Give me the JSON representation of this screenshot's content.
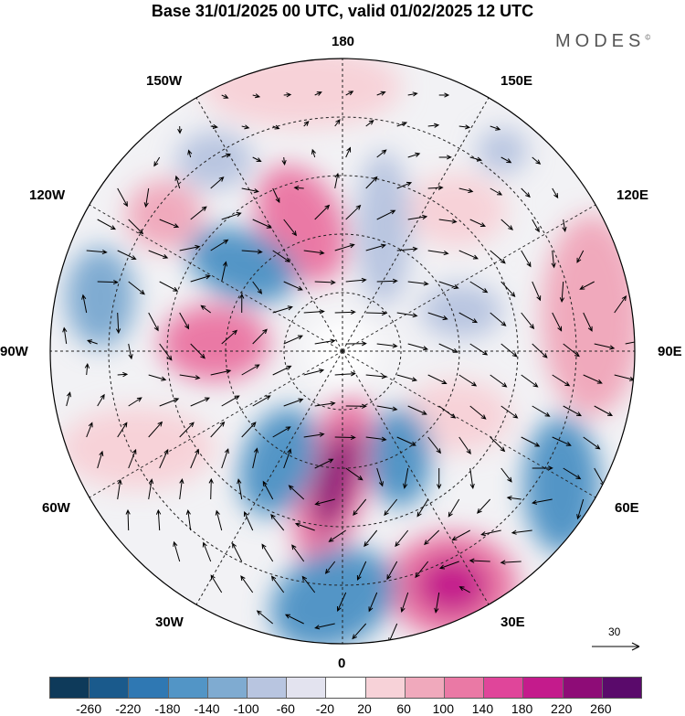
{
  "header": {
    "title": "Base 31/01/2025 00 UTC, valid 01/02/2025 12 UTC",
    "brand": "MODES",
    "brand_mark": "©"
  },
  "map": {
    "projection": "polar-stereographic-north",
    "longitude_labels": [
      {
        "id": "180",
        "text": "180"
      },
      {
        "id": "150W",
        "text": "150W"
      },
      {
        "id": "150E",
        "text": "150E"
      },
      {
        "id": "120W",
        "text": "120W"
      },
      {
        "id": "120E",
        "text": "120E"
      },
      {
        "id": "90W",
        "text": "90W"
      },
      {
        "id": "90E",
        "text": "90E"
      },
      {
        "id": "60W",
        "text": "60W"
      },
      {
        "id": "60E",
        "text": "60E"
      },
      {
        "id": "30W",
        "text": "30W"
      },
      {
        "id": "30E",
        "text": "30E"
      },
      {
        "id": "0",
        "text": "0"
      }
    ],
    "vector_scale_label": "30"
  },
  "colorbar": {
    "tick_labels": [
      "-260",
      "-220",
      "-180",
      "-140",
      "-100",
      "-60",
      "-20",
      "20",
      "60",
      "100",
      "140",
      "180",
      "220",
      "260"
    ],
    "colors": [
      "#0e3a5a",
      "#1a5a8c",
      "#2f78b3",
      "#5295c6",
      "#7fabd1",
      "#b8c5e0",
      "#e3e3ef",
      "#ffffff",
      "#f7d2d8",
      "#f0a9bc",
      "#ea79a5",
      "#e0459a",
      "#c41b8c",
      "#8e0c77",
      "#5a0a6b"
    ]
  }
}
